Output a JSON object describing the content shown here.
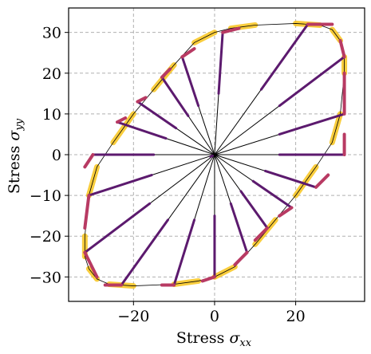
{
  "chart_data": {
    "type": "line",
    "x_ticks": [
      -20,
      0,
      20
    ],
    "y_ticks": [
      30,
      20,
      10,
      0,
      -10,
      -20,
      -30
    ],
    "x_tick_labels": [
      "−20",
      "0",
      "20"
    ],
    "y_tick_labels": [
      "30",
      "20",
      "10",
      "0",
      "−10",
      "−20",
      "−30"
    ],
    "xlim": [
      -36,
      37
    ],
    "ylim": [
      -36,
      36
    ],
    "xlabel_text": "Stress ",
    "xlabel_sub": "xx",
    "ylabel_text": "Stress ",
    "ylabel_sub": "yy",
    "grid": true,
    "ray_count": 20,
    "yield_surface": [
      [
        32,
        24
      ],
      [
        31,
        28
      ],
      [
        29,
        30.7
      ],
      [
        26,
        31.8
      ],
      [
        20,
        32.2
      ],
      [
        10,
        31.8
      ],
      [
        4,
        31
      ],
      [
        0,
        30
      ],
      [
        -5,
        27.5
      ],
      [
        -10,
        22
      ],
      [
        -15,
        16
      ],
      [
        -20,
        10
      ],
      [
        -25,
        3
      ],
      [
        -29,
        -3
      ],
      [
        -31,
        -10
      ],
      [
        -32,
        -20
      ],
      [
        -32,
        -25
      ],
      [
        -31,
        -28
      ],
      [
        -29,
        -30.5
      ],
      [
        -26,
        -31.8
      ],
      [
        -20,
        -32.2
      ],
      [
        -10,
        -31.8
      ],
      [
        -4,
        -31
      ],
      [
        0,
        -30
      ],
      [
        5,
        -27.5
      ],
      [
        10,
        -22
      ],
      [
        15,
        -16
      ],
      [
        20,
        -10
      ],
      [
        25,
        -3
      ],
      [
        29,
        3
      ],
      [
        31,
        10
      ],
      [
        32,
        20
      ],
      [
        32,
        24
      ]
    ],
    "rays": [
      [
        [
          0,
          0
        ],
        [
          32,
          24
        ],
        [
          31,
          28
        ]
      ],
      [
        [
          0,
          0
        ],
        [
          23,
          32
        ],
        [
          29,
          32
        ]
      ],
      [
        [
          0,
          0
        ],
        [
          2,
          30
        ],
        [
          6,
          31
        ]
      ],
      [
        [
          0,
          0
        ],
        [
          -8,
          24
        ],
        [
          -5,
          26
        ]
      ],
      [
        [
          0,
          0
        ],
        [
          -13,
          19
        ],
        [
          -11,
          21
        ]
      ],
      [
        [
          0,
          0
        ],
        [
          -19,
          13
        ],
        [
          -17,
          14
        ]
      ],
      [
        [
          0,
          0
        ],
        [
          -24,
          8
        ],
        [
          -22,
          9
        ]
      ],
      [
        [
          0,
          0
        ],
        [
          -30,
          0
        ],
        [
          -32,
          -3
        ]
      ],
      [
        [
          0,
          0
        ],
        [
          -31,
          -10
        ],
        [
          -32,
          -18
        ]
      ],
      [
        [
          0,
          0
        ],
        [
          -32,
          -24
        ],
        [
          -29,
          -30
        ]
      ],
      [
        [
          0,
          0
        ],
        [
          -23,
          -32
        ],
        [
          -27,
          -32
        ]
      ],
      [
        [
          0,
          0
        ],
        [
          -10,
          -32
        ],
        [
          -13,
          -32
        ]
      ],
      [
        [
          0,
          0
        ],
        [
          0,
          -30
        ],
        [
          -3,
          -31
        ]
      ],
      [
        [
          0,
          0
        ],
        [
          8,
          -24
        ],
        [
          5,
          -27
        ]
      ],
      [
        [
          0,
          0
        ],
        [
          13,
          -18
        ],
        [
          10,
          -21
        ]
      ],
      [
        [
          0,
          0
        ],
        [
          19,
          -13
        ],
        [
          16,
          -15
        ]
      ],
      [
        [
          0,
          0
        ],
        [
          25,
          -8
        ],
        [
          28,
          -5
        ]
      ],
      [
        [
          0,
          0
        ],
        [
          32,
          0
        ],
        [
          32,
          5
        ]
      ],
      [
        [
          0,
          0
        ],
        [
          32,
          10
        ],
        [
          32,
          20
        ]
      ],
      [
        [
          0,
          0
        ],
        [
          -1,
          -0.5
        ]
      ]
    ],
    "colors": {
      "ray_start": "#1b0c41",
      "ray_mid": "#5c1a6e",
      "ray_end": "#b83a63",
      "glow": "#f8c51c",
      "surface": "#000000",
      "grid": "#b0b0b0"
    }
  }
}
